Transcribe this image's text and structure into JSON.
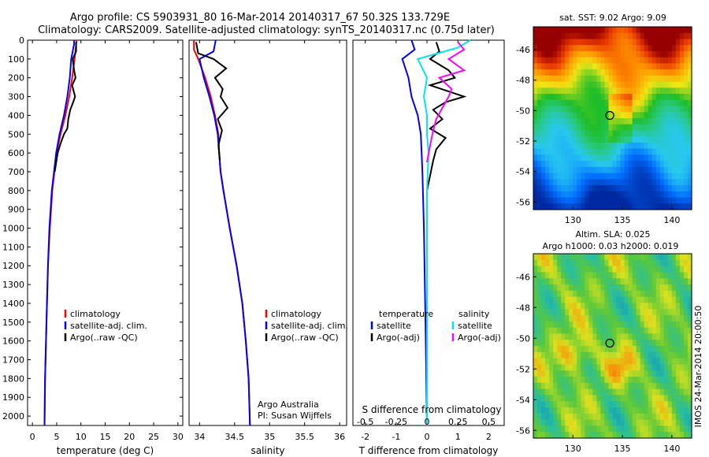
{
  "header": {
    "line1": "Argo profile: CS 5903931_80 16-Mar-2014 20140317_67 50.32S 133.729E",
    "line2": "Climatology: CARS2009. Satellite-adjusted climatology: synTS_20140317.nc (0.75d later)"
  },
  "colors": {
    "climatology": "#ff0000",
    "satellite": "#0000ff",
    "argo": "#000000",
    "salinity_satellite": "#00e5ee",
    "salinity_argo": "#ff00ff"
  },
  "chart_data": [
    {
      "type": "line",
      "name": "temperature-profile",
      "xlabel": "temperature (deg C)",
      "ylabel": "",
      "xlim": [
        -1,
        31
      ],
      "ylim": [
        2050,
        0
      ],
      "xticks": [
        0,
        5,
        10,
        15,
        20,
        25,
        30
      ],
      "yticks": [
        0,
        100,
        200,
        300,
        400,
        500,
        600,
        700,
        800,
        900,
        1000,
        1100,
        1200,
        1300,
        1400,
        1500,
        1600,
        1700,
        1800,
        1900,
        2000
      ],
      "legend": [
        "climatology",
        "satellite-adj. clim.",
        "Argo(..raw -QC)"
      ],
      "series": [
        {
          "name": "climatology",
          "depth": [
            0,
            100,
            200,
            300,
            400,
            500,
            600,
            800,
            1000,
            1200,
            1500,
            1800,
            2050
          ],
          "values": [
            9.1,
            8.7,
            8.2,
            7.6,
            6.8,
            5.8,
            5.0,
            4.1,
            3.6,
            3.2,
            2.9,
            2.6,
            2.5
          ]
        },
        {
          "name": "satellite-adj. clim.",
          "depth": [
            0,
            20,
            100,
            200,
            300,
            400,
            500,
            600,
            800,
            1000,
            1200,
            1500,
            1800,
            2050
          ],
          "values": [
            8.6,
            8.6,
            8.0,
            7.7,
            7.2,
            6.5,
            5.6,
            4.9,
            4.0,
            3.5,
            3.2,
            2.9,
            2.6,
            2.5
          ]
        },
        {
          "name": "Argo(..raw -QC)",
          "depth": [
            10,
            60,
            100,
            160,
            200,
            240,
            300,
            330,
            370,
            420,
            470,
            500,
            550,
            600,
            700
          ],
          "values": [
            9.0,
            9.0,
            8.3,
            8.6,
            8.9,
            8.2,
            8.8,
            8.4,
            7.8,
            7.4,
            7.2,
            6.5,
            5.8,
            5.2,
            4.6
          ]
        }
      ]
    },
    {
      "type": "line",
      "name": "salinity-profile",
      "xlabel": "salinity",
      "xlim": [
        33.85,
        36.1
      ],
      "ylim": [
        2050,
        0
      ],
      "xticks": [
        34,
        34.5,
        35,
        35.5,
        36
      ],
      "legend": [
        "climatology",
        "satellite-adj. clim.",
        "Argo(..raw -QC)"
      ],
      "annotation": [
        "Argo Australia",
        "PI: Susan Wijffels"
      ],
      "series": [
        {
          "name": "climatology",
          "depth": [
            0,
            50,
            100,
            200,
            300,
            400,
            500,
            600,
            700,
            800,
            1000,
            1200,
            1400,
            1600,
            1800,
            2050
          ],
          "values": [
            33.92,
            33.92,
            33.98,
            34.08,
            34.16,
            34.22,
            34.27,
            34.28,
            34.3,
            34.34,
            34.43,
            34.53,
            34.61,
            34.66,
            34.7,
            34.72
          ]
        },
        {
          "name": "satellite-adj. clim.",
          "depth": [
            0,
            60,
            100,
            200,
            300,
            400,
            500,
            600,
            700,
            800,
            1000,
            1200,
            1400,
            1600,
            1800,
            2050
          ],
          "values": [
            34.23,
            34.2,
            34.0,
            34.06,
            34.14,
            34.21,
            34.26,
            34.28,
            34.3,
            34.34,
            34.43,
            34.53,
            34.61,
            34.66,
            34.7,
            34.72
          ]
        },
        {
          "name": "Argo(..raw -QC)",
          "depth": [
            10,
            70,
            100,
            150,
            200,
            260,
            300,
            360,
            420,
            480,
            560,
            640
          ],
          "values": [
            33.95,
            33.98,
            34.2,
            34.38,
            34.22,
            34.33,
            34.3,
            34.4,
            34.26,
            34.32,
            34.27,
            34.29
          ]
        }
      ]
    },
    {
      "type": "line",
      "name": "difference-profile",
      "xlabel": "T difference from climatology",
      "xlabel2": "S difference from climatology",
      "xlim": [
        -2.4,
        2.5
      ],
      "ylim": [
        2050,
        0
      ],
      "xticks_T": [
        -2,
        -1,
        0,
        1,
        2
      ],
      "xticks_S": [
        "-0.5",
        "-0.25",
        "0",
        "0.25",
        "0.5"
      ],
      "legend_left_title": "temperature",
      "legend_right_title": "salinity",
      "legend": [
        "satellite",
        "Argo(-adj)",
        "satellite",
        "Argo(-adj)"
      ],
      "series": [
        {
          "name": "temperature satellite",
          "depth": [
            0,
            50,
            100,
            200,
            300,
            400,
            500,
            700,
            1000,
            1500,
            2050
          ],
          "values": [
            -0.5,
            -0.4,
            -0.8,
            -0.6,
            -0.5,
            -0.3,
            -0.2,
            -0.15,
            -0.1,
            -0.05,
            0.0
          ]
        },
        {
          "name": "temperature Argo(-adj)",
          "depth": [
            10,
            60,
            100,
            160,
            200,
            240,
            300,
            330,
            370,
            420,
            470,
            520,
            580,
            640,
            720,
            800
          ],
          "values": [
            0.3,
            0.4,
            0.1,
            0.7,
            0.9,
            0.1,
            1.2,
            0.6,
            0.2,
            0.5,
            0.1,
            0.6,
            0.3,
            0.2,
            0.1,
            0.0
          ]
        },
        {
          "name": "salinity satellite",
          "depth": [
            0,
            40,
            100,
            200,
            300,
            400,
            500,
            600,
            800,
            1100,
            1500,
            2050
          ],
          "values": [
            1.4,
            1.0,
            -0.3,
            0.0,
            -0.1,
            0.0,
            0.0,
            0.05,
            0.0,
            0.0,
            0.0,
            0.0
          ]
        },
        {
          "name": "salinity Argo(-adj)",
          "depth": [
            10,
            50,
            100,
            160,
            200,
            260,
            300,
            360,
            420,
            480,
            560,
            650
          ],
          "values": [
            1.0,
            1.2,
            0.7,
            1.2,
            0.4,
            0.8,
            0.7,
            0.5,
            0.3,
            0.2,
            0.1,
            0.0
          ]
        }
      ]
    },
    {
      "type": "heatmap",
      "name": "sst-map",
      "title": "sat. SST: 9.02 Argo: 9.09",
      "xlim": [
        126,
        142
      ],
      "ylim": [
        -56.5,
        -44.5
      ],
      "xticks": [
        130,
        135,
        140
      ],
      "yticks": [
        -56,
        -54,
        -52,
        -50,
        -48,
        -46
      ],
      "marker": {
        "lon": 133.729,
        "lat": -50.32
      }
    },
    {
      "type": "heatmap",
      "name": "sla-map",
      "title": "Altim. SLA: 0.025",
      "subtitle": "Argo h1000: 0.03 h2000: 0.019",
      "xlim": [
        126,
        142
      ],
      "ylim": [
        -56.5,
        -44.5
      ],
      "xticks": [
        130,
        135,
        140
      ],
      "yticks": [
        -56,
        -54,
        -52,
        -50,
        -48,
        -46
      ],
      "marker": {
        "lon": 133.729,
        "lat": -50.32
      }
    }
  ],
  "side_text": "IMOS 24-Mar-2014 20:00:50"
}
